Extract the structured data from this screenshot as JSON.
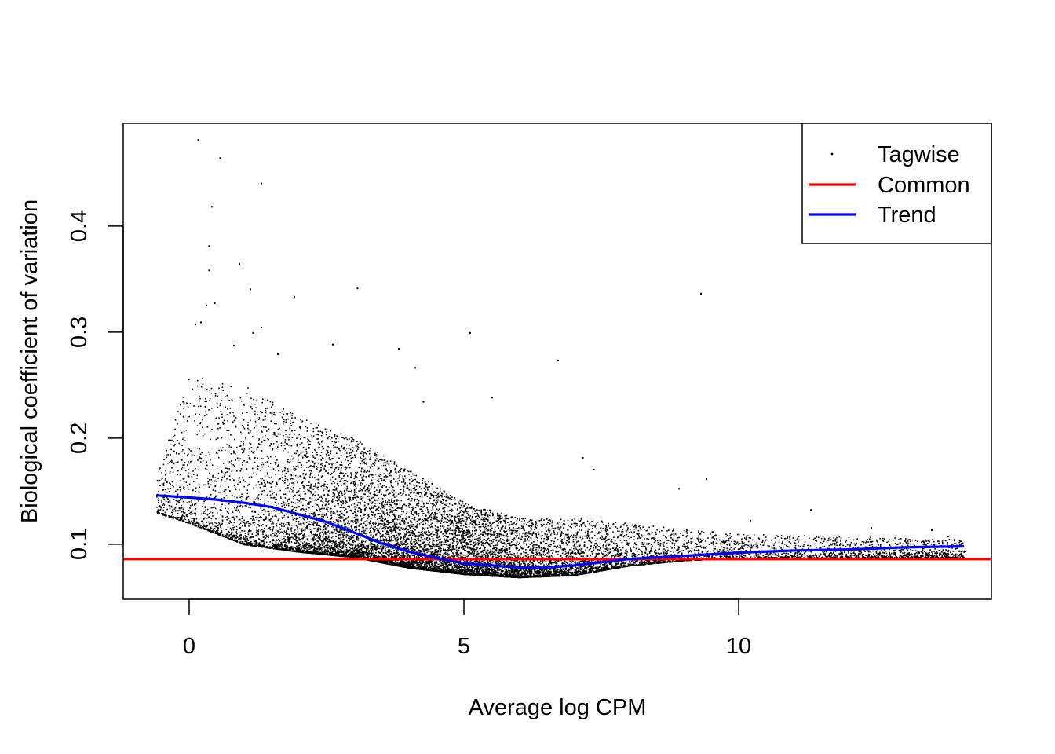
{
  "chart_data": {
    "type": "scatter",
    "title": "",
    "xlabel": "Average log CPM",
    "ylabel": "Biological coefficient of variation",
    "xlim": [
      -1.2,
      14.6
    ],
    "ylim": [
      0.048,
      0.497
    ],
    "x_ticks": [
      0,
      5,
      10
    ],
    "x_tick_labels": [
      "0",
      "5",
      "10"
    ],
    "y_ticks": [
      0.1,
      0.2,
      0.3,
      0.4
    ],
    "y_tick_labels": [
      "0.1",
      "0.2",
      "0.3",
      "0.4"
    ],
    "grid": false,
    "legend": {
      "position": "top-right",
      "entries": [
        {
          "label": "Tagwise",
          "kind": "point",
          "color": "#000000"
        },
        {
          "label": "Common",
          "kind": "line",
          "color": "#ff0000"
        },
        {
          "label": "Trend",
          "kind": "line",
          "color": "#0000ff"
        }
      ]
    },
    "series": [
      {
        "name": "Tagwise",
        "kind": "points",
        "color": "#000000",
        "points": [
          [
            0.15,
            0.482
          ],
          [
            0.55,
            0.465
          ],
          [
            0.4,
            0.419
          ],
          [
            1.3,
            0.441
          ],
          [
            0.35,
            0.382
          ],
          [
            0.9,
            0.365
          ],
          [
            0.35,
            0.359
          ],
          [
            1.1,
            0.341
          ],
          [
            3.05,
            0.342
          ],
          [
            1.9,
            0.334
          ],
          [
            0.3,
            0.326
          ],
          [
            0.45,
            0.328
          ],
          [
            9.3,
            0.337
          ],
          [
            0.1,
            0.308
          ],
          [
            1.3,
            0.305
          ],
          [
            0.2,
            0.31
          ],
          [
            1.15,
            0.3
          ],
          [
            5.1,
            0.3
          ],
          [
            0.8,
            0.288
          ],
          [
            2.6,
            0.289
          ],
          [
            3.8,
            0.285
          ],
          [
            6.7,
            0.274
          ],
          [
            1.6,
            0.28
          ],
          [
            4.1,
            0.267
          ],
          [
            5.5,
            0.239
          ],
          [
            4.25,
            0.235
          ],
          [
            7.15,
            0.182
          ],
          [
            7.35,
            0.171
          ],
          [
            8.9,
            0.153
          ],
          [
            9.4,
            0.162
          ],
          [
            12.4,
            0.116
          ],
          [
            13.5,
            0.114
          ],
          [
            13.8,
            0.108
          ],
          [
            11.3,
            0.133
          ],
          [
            10.2,
            0.123
          ],
          [
            12.4,
            0.103
          ],
          [
            14.1,
            0.094
          ]
        ],
        "cloud": {
          "description": "dense band of gene-wise estimates",
          "x_range": [
            -0.6,
            14.1
          ],
          "lower_envelope": [
            [
              -0.6,
              0.13
            ],
            [
              0,
              0.12
            ],
            [
              1,
              0.1
            ],
            [
              2,
              0.093
            ],
            [
              3,
              0.088
            ],
            [
              4,
              0.078
            ],
            [
              5,
              0.072
            ],
            [
              6,
              0.069
            ],
            [
              7,
              0.071
            ],
            [
              8,
              0.08
            ],
            [
              9,
              0.085
            ],
            [
              10,
              0.087
            ],
            [
              14,
              0.088
            ]
          ],
          "spread_upper": [
            [
              -0.6,
              0.165
            ],
            [
              0,
              0.26
            ],
            [
              1,
              0.25
            ],
            [
              2,
              0.22
            ],
            [
              3,
              0.2
            ],
            [
              4,
              0.17
            ],
            [
              5,
              0.14
            ],
            [
              6,
              0.125
            ],
            [
              7,
              0.125
            ],
            [
              8,
              0.12
            ],
            [
              9,
              0.115
            ],
            [
              10,
              0.11
            ],
            [
              14,
              0.105
            ]
          ]
        }
      },
      {
        "name": "Common",
        "kind": "hline",
        "color": "#ff0000",
        "y": 0.086
      },
      {
        "name": "Trend",
        "kind": "line",
        "color": "#0000ff",
        "points": [
          [
            -0.6,
            0.146
          ],
          [
            0,
            0.144
          ],
          [
            0.5,
            0.142
          ],
          [
            1.0,
            0.139
          ],
          [
            1.5,
            0.135
          ],
          [
            2.0,
            0.128
          ],
          [
            2.5,
            0.121
          ],
          [
            3.0,
            0.111
          ],
          [
            3.5,
            0.101
          ],
          [
            4.0,
            0.093
          ],
          [
            4.5,
            0.087
          ],
          [
            5.0,
            0.082
          ],
          [
            5.5,
            0.08
          ],
          [
            6.0,
            0.078
          ],
          [
            6.5,
            0.078
          ],
          [
            7.0,
            0.08
          ],
          [
            7.5,
            0.083
          ],
          [
            8.0,
            0.086
          ],
          [
            9.0,
            0.089
          ],
          [
            10.0,
            0.092
          ],
          [
            11.0,
            0.094
          ],
          [
            12.0,
            0.095
          ],
          [
            13.0,
            0.097
          ],
          [
            14.1,
            0.098
          ]
        ]
      }
    ]
  }
}
